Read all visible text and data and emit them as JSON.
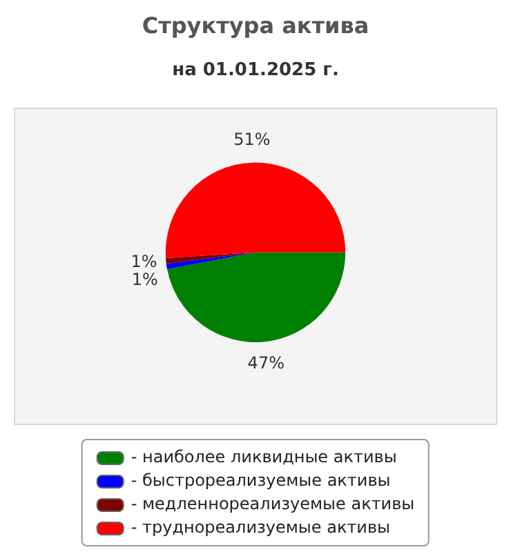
{
  "chart_data": {
    "type": "pie",
    "title": "Структура актива",
    "subtitle": "на 01.01.2025 г.",
    "categories": [
      "- наиболее ликвидные активы",
      "- быстрореализуемые активы",
      "- медленнореализуемые активы",
      "- труднореализуемые активы"
    ],
    "values": [
      47,
      1,
      1,
      51
    ],
    "value_labels": [
      "47%",
      "1%",
      "1%",
      "51%"
    ],
    "colors": [
      "#008000",
      "#0000ff",
      "#800000",
      "#ff0000"
    ],
    "legend": "bottom"
  }
}
